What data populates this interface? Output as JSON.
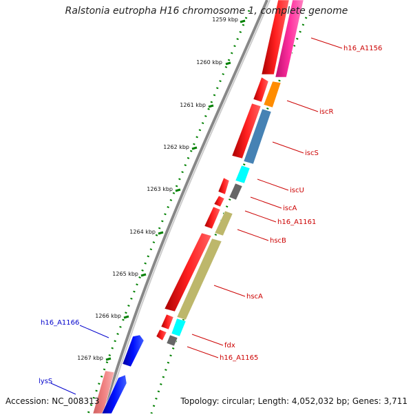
{
  "title": "Ralstonia eutropha H16 chromosome 1, complete genome",
  "footer": {
    "accession": "Accession: NC_008313",
    "summary": "Topology: circular; Length: 4,052,032 bp; Genes: 3,711"
  },
  "ticks": [
    "1259 kbp",
    "1260 kbp",
    "1261 kbp",
    "1262 kbp",
    "1263 kbp",
    "1264 kbp",
    "1265 kbp",
    "1266 kbp",
    "1267 kbp"
  ],
  "genes": {
    "h16_A1156": "h16_A1156",
    "iscR": "iscR",
    "iscS": "iscS",
    "iscU": "iscU",
    "iscA": "iscA",
    "h16_A1161": "h16_A1161",
    "hscB": "hscB",
    "hscA": "hscA",
    "fdx": "fdx",
    "h16_A1165": "h16_A1165",
    "h16_A1166": "h16_A1166",
    "lysS": "lysS"
  },
  "colors": {
    "red": "#ff0000",
    "dark_red": "#cc0000",
    "label_red": "#cc0000",
    "label_blue": "#0000cc",
    "magenta": "#ff1493",
    "orange": "#ff8c00",
    "steelblue": "#4682b4",
    "cyan": "#00ffff",
    "gray": "#666666",
    "khaki": "#bdb76b",
    "blue": "#0000ff",
    "pink": "#f08080",
    "green": "#008000",
    "backbone": "#888888"
  }
}
